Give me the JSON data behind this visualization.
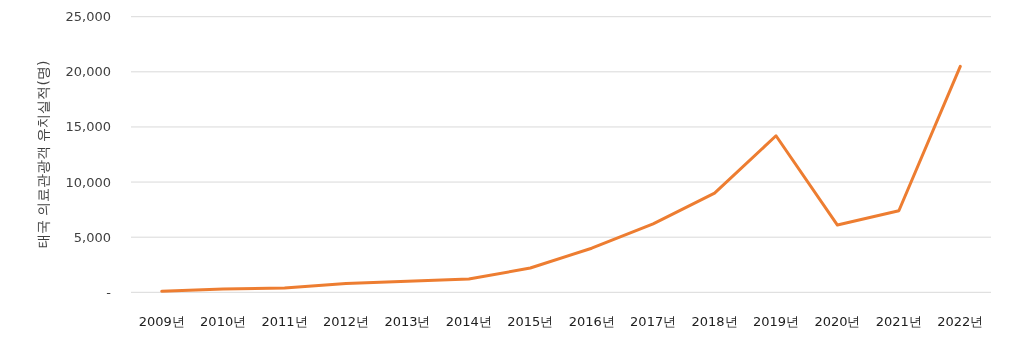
{
  "chart_data": {
    "type": "line",
    "ylabel": "태국 의료관광객 유치실적(명)",
    "categories": [
      "2009년",
      "2010년",
      "2011년",
      "2012년",
      "2013년",
      "2014년",
      "2015년",
      "2016년",
      "2017년",
      "2018년",
      "2019년",
      "2020년",
      "2021년",
      "2022년"
    ],
    "series": [
      {
        "color": "#ed7d31",
        "values": [
          100,
          300,
          400,
          800,
          1000,
          1200,
          2200,
          4000,
          6200,
          9000,
          14200,
          6100,
          7400,
          20500
        ]
      }
    ],
    "ylim": [
      0,
      25000
    ],
    "yticks": [
      {
        "value": 0,
        "label": "-"
      },
      {
        "value": 5000,
        "label": "5,000"
      },
      {
        "value": 10000,
        "label": "10,000"
      },
      {
        "value": 15000,
        "label": "15,000"
      },
      {
        "value": 20000,
        "label": "20,000"
      },
      {
        "value": 25000,
        "label": "25,000"
      }
    ],
    "grid": "y",
    "marker": "none",
    "line_style": "solid"
  }
}
